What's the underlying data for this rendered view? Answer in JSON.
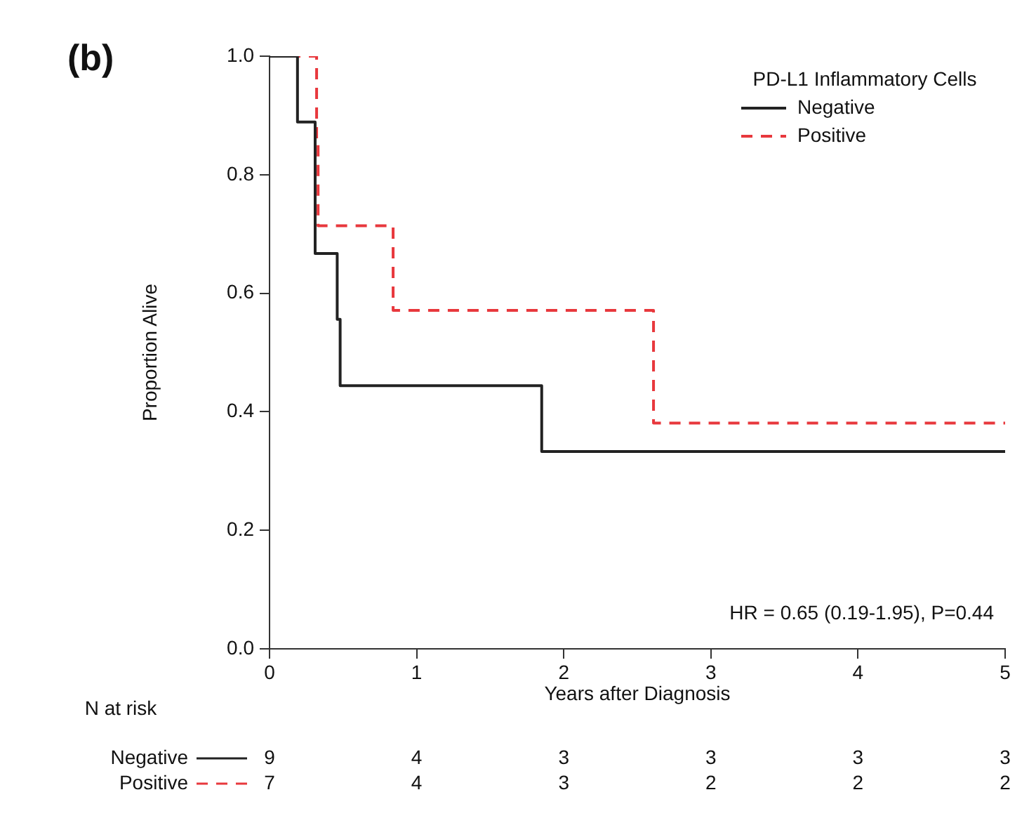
{
  "chart_data": {
    "type": "step",
    "title": "(b)",
    "xlabel": "Years after Diagnosis",
    "ylabel": "Proportion Alive",
    "legend_title": "PD-L1 Inflammatory Cells",
    "legend": "top right",
    "grid": false,
    "marker": "none",
    "xlim": [
      0,
      5
    ],
    "xticks": [
      0,
      1,
      2,
      3,
      4,
      5
    ],
    "ylim": [
      0,
      1
    ],
    "yticks": [
      {
        "value": 0,
        "label": "0.0"
      },
      {
        "value": 0.2,
        "label": "0.2"
      },
      {
        "value": 0.4,
        "label": "0.4"
      },
      {
        "value": 0.6,
        "label": "0.6"
      },
      {
        "value": 0.8,
        "label": "0.8"
      },
      {
        "value": 1,
        "label": "1.0"
      }
    ],
    "series": [
      {
        "name": "Negative",
        "color": "#222222",
        "line_style": "solid",
        "x": [
          0,
          0.19,
          0.31,
          0.31,
          0.46,
          0.48,
          1.85,
          5
        ],
        "values": [
          1,
          0.889,
          0.778,
          0.667,
          0.556,
          0.444,
          0.333,
          0.333
        ]
      },
      {
        "name": "Positive",
        "color": "#e8383d",
        "line_style": "dashed",
        "x": [
          0,
          0.32,
          0.33,
          0.84,
          2.61,
          5
        ],
        "values": [
          1,
          0.857,
          0.714,
          0.571,
          0.381,
          0.381
        ]
      }
    ],
    "annotations": [
      "HR = 0.65 (0.19-1.95), P=0.44",
      "N at risk",
      [
        "Negative",
        "9",
        "4",
        "3",
        "3",
        "3",
        "3"
      ],
      [
        "Positive",
        "7",
        "4",
        "3",
        "2",
        "2",
        "2"
      ]
    ]
  }
}
